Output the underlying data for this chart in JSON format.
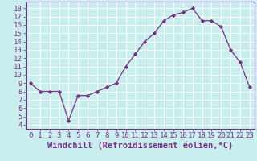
{
  "x": [
    0,
    1,
    2,
    3,
    4,
    5,
    6,
    7,
    8,
    9,
    10,
    11,
    12,
    13,
    14,
    15,
    16,
    17,
    18,
    19,
    20,
    21,
    22,
    23
  ],
  "y": [
    9,
    8,
    8,
    8,
    4.5,
    7.5,
    7.5,
    8,
    8.5,
    9,
    11,
    12.5,
    14,
    15,
    16.5,
    17.2,
    17.5,
    18,
    16.5,
    16.5,
    15.8,
    13,
    11.5,
    8.5
  ],
  "line_color": "#7b2d8b",
  "marker": "D",
  "marker_size": 2.2,
  "background_color": "#c8eeee",
  "grid_color": "#b0d8d8",
  "xlabel": "Windchill (Refroidissement éolien,°C)",
  "xlabel_fontsize": 7.5,
  "ylabel_ticks": [
    4,
    5,
    6,
    7,
    8,
    9,
    10,
    11,
    12,
    13,
    14,
    15,
    16,
    17,
    18
  ],
  "ylim": [
    3.5,
    18.8
  ],
  "xlim": [
    -0.5,
    23.5
  ],
  "tick_fontsize": 6.5,
  "tick_color": "#7b2d8b",
  "spine_color": "#7b2d8b",
  "label_color": "#7b2d8b"
}
